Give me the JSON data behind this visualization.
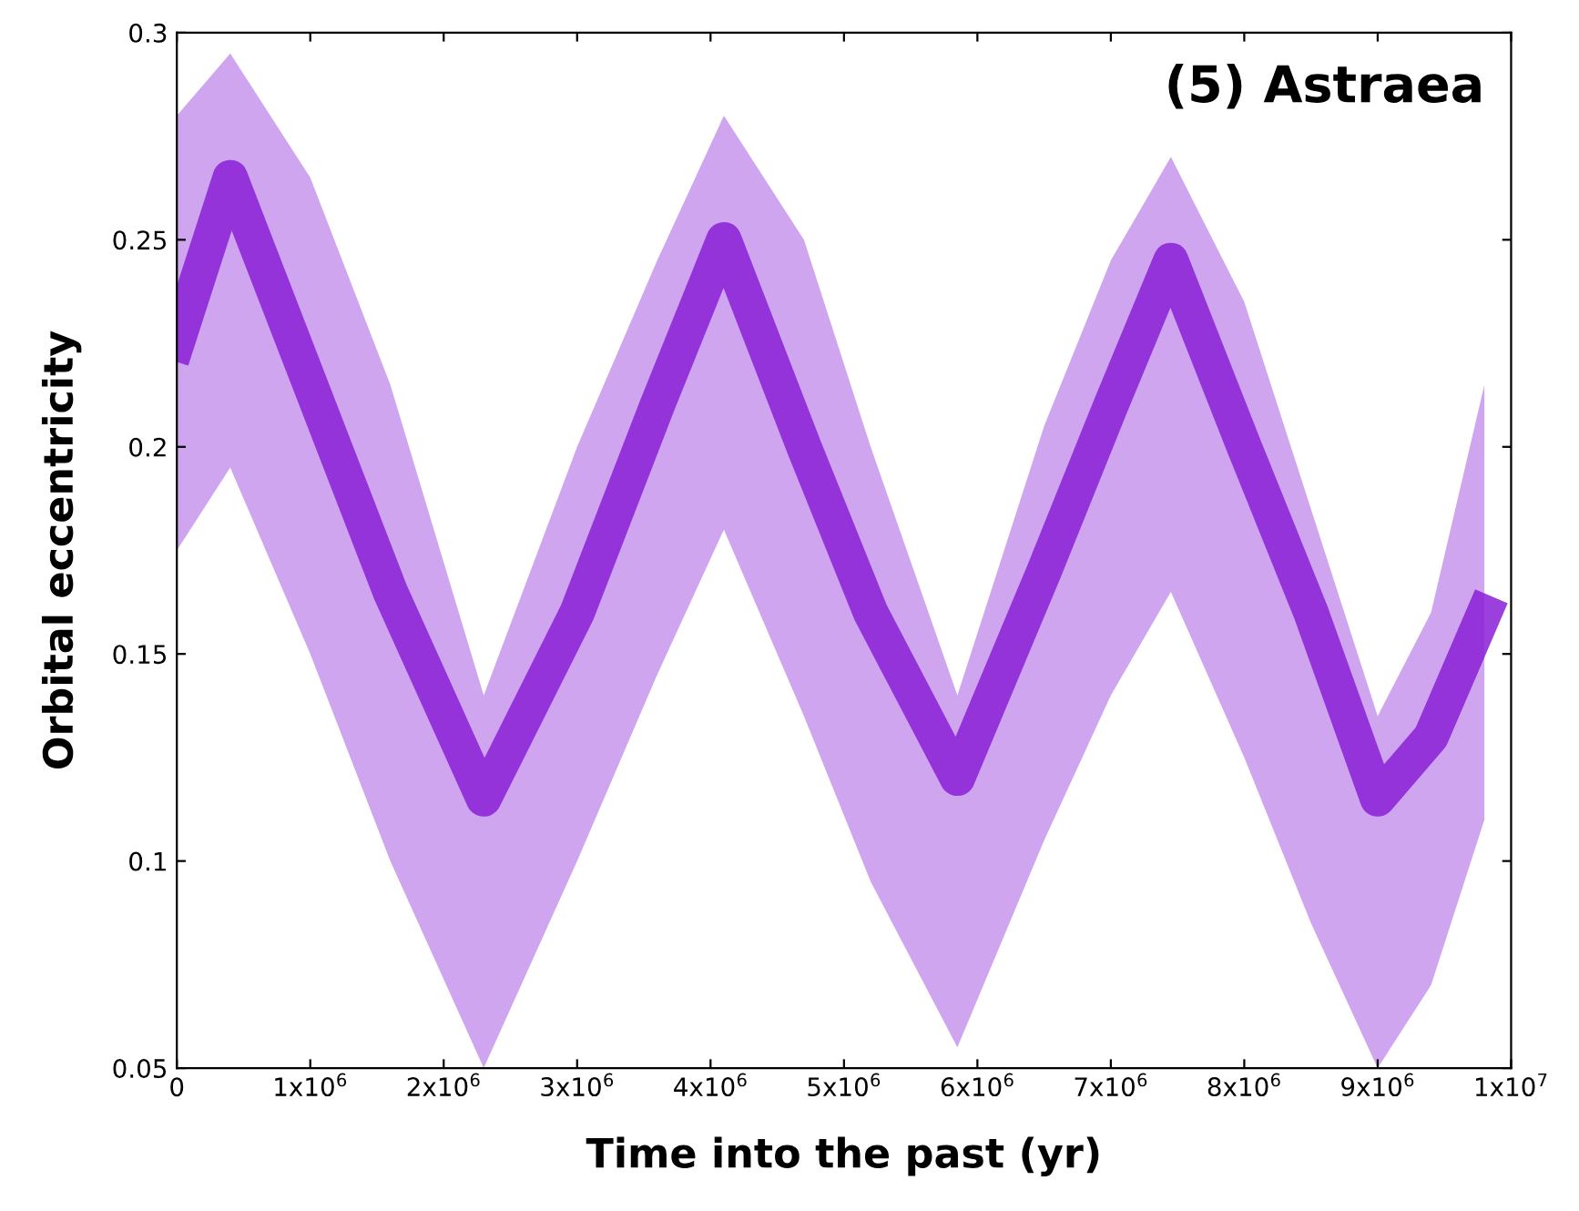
{
  "chart_data": {
    "type": "line",
    "xlabel": "Time into the past (yr)",
    "ylabel": "Orbital eccentricity",
    "annotations": [
      "(5) Astraea"
    ],
    "x": [
      0,
      400000,
      1000000,
      1600000,
      2300000,
      3000000,
      3600000,
      4100000,
      4700000,
      5200000,
      5850000,
      6500000,
      7000000,
      7450000,
      8000000,
      8500000,
      9000000,
      9400000,
      9800000
    ],
    "series": [
      {
        "color": "#8a1fd6",
        "values": [
          0.225,
          0.265,
          0.215,
          0.165,
          0.115,
          0.16,
          0.21,
          0.25,
          0.2,
          0.16,
          0.12,
          0.17,
          0.21,
          0.245,
          0.2,
          0.16,
          0.115,
          0.13,
          0.16
        ],
        "lower": [
          0.175,
          0.195,
          0.15,
          0.1,
          0.05,
          0.1,
          0.145,
          0.18,
          0.135,
          0.095,
          0.055,
          0.105,
          0.14,
          0.165,
          0.125,
          0.085,
          0.05,
          0.07,
          0.11
        ],
        "upper": [
          0.28,
          0.295,
          0.265,
          0.215,
          0.14,
          0.2,
          0.245,
          0.28,
          0.25,
          0.2,
          0.14,
          0.205,
          0.245,
          0.27,
          0.235,
          0.185,
          0.135,
          0.16,
          0.215
        ]
      }
    ],
    "xlim": [
      0,
      10000000
    ],
    "ylim": [
      0.05,
      0.3
    ],
    "xticks": [
      0,
      {
        "value": 1000000,
        "label": "1x10$^{6}$"
      },
      {
        "value": 2000000,
        "label": "2x10$^{6}$"
      },
      {
        "value": 3000000,
        "label": "3x10$^{6}$"
      },
      {
        "value": 4000000,
        "label": "4x10$^{6}$"
      },
      {
        "value": 5000000,
        "label": "5x10$^{6}$"
      },
      {
        "value": 6000000,
        "label": "6x10$^{6}$"
      },
      {
        "value": 7000000,
        "label": "7x10$^{6}$"
      },
      {
        "value": 8000000,
        "label": "8x10$^{6}$"
      },
      {
        "value": 9000000,
        "label": "9x10$^{6}$"
      },
      {
        "value": 10000000,
        "label": "1x10$^{7}$"
      }
    ],
    "yticks": [
      0.05,
      0.1,
      0.15,
      0.2,
      0.25,
      0.3
    ],
    "grid": false,
    "legend": false
  }
}
